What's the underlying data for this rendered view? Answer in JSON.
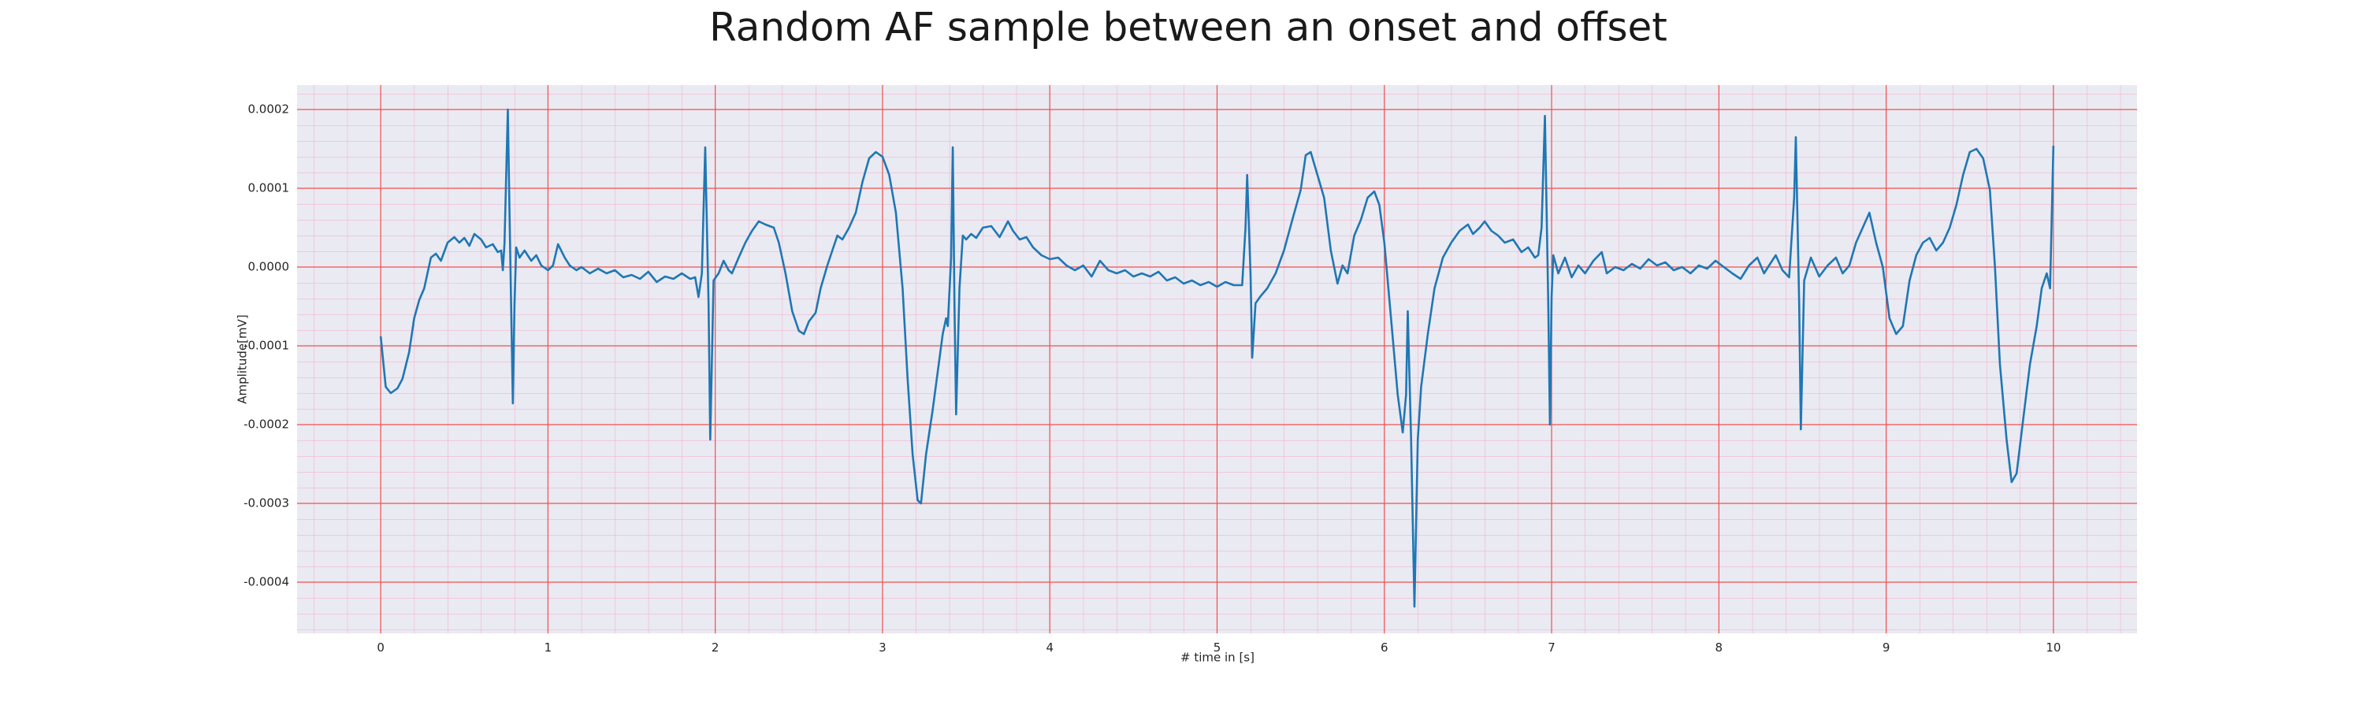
{
  "chart_data": {
    "type": "line",
    "title": "Random AF sample between an onset and offset",
    "xlabel": "# time in [s]",
    "ylabel": "Amplitude[mV]",
    "color": "#1f77b4",
    "grid": true,
    "minor_grid": true,
    "xlim": [
      -0.5,
      10.5
    ],
    "ylim": [
      -0.000465,
      0.000231
    ],
    "xticks": [
      0,
      1,
      2,
      3,
      4,
      5,
      6,
      7,
      8,
      9,
      10
    ],
    "yticks": [
      -0.0004,
      -0.0003,
      -0.0002,
      -0.0001,
      {
        "value": 0,
        "label": "0.0000"
      },
      0.0001,
      0.0002
    ],
    "x": [
      0,
      0.03,
      0.06,
      0.1,
      0.13,
      0.17,
      0.2,
      0.23,
      0.26,
      0.3,
      0.33,
      0.36,
      0.4,
      0.44,
      0.47,
      0.5,
      0.53,
      0.56,
      0.6,
      0.63,
      0.67,
      0.7,
      0.72,
      0.73,
      0.74,
      0.76,
      0.77,
      0.79,
      0.8,
      0.81,
      0.83,
      0.86,
      0.9,
      0.93,
      0.96,
      1.0,
      1.03,
      1.06,
      1.1,
      1.13,
      1.17,
      1.2,
      1.25,
      1.3,
      1.35,
      1.4,
      1.45,
      1.5,
      1.55,
      1.6,
      1.65,
      1.7,
      1.75,
      1.8,
      1.85,
      1.88,
      1.9,
      1.92,
      1.94,
      1.96,
      1.97,
      1.99,
      2.02,
      2.05,
      2.08,
      2.1,
      2.14,
      2.18,
      2.22,
      2.26,
      2.3,
      2.35,
      2.38,
      2.42,
      2.46,
      2.5,
      2.53,
      2.56,
      2.6,
      2.63,
      2.67,
      2.7,
      2.73,
      2.76,
      2.8,
      2.84,
      2.88,
      2.92,
      2.96,
      3.0,
      3.04,
      3.08,
      3.12,
      3.15,
      3.18,
      3.21,
      3.23,
      3.26,
      3.3,
      3.33,
      3.36,
      3.38,
      3.39,
      3.41,
      3.42,
      3.43,
      3.44,
      3.46,
      3.48,
      3.5,
      3.53,
      3.56,
      3.6,
      3.65,
      3.7,
      3.75,
      3.78,
      3.82,
      3.86,
      3.9,
      3.95,
      4.0,
      4.05,
      4.1,
      4.15,
      4.2,
      4.25,
      4.3,
      4.35,
      4.4,
      4.45,
      4.5,
      4.55,
      4.6,
      4.65,
      4.7,
      4.75,
      4.8,
      4.85,
      4.9,
      4.95,
      5.0,
      5.05,
      5.1,
      5.15,
      5.17,
      5.18,
      5.2,
      5.21,
      5.23,
      5.26,
      5.3,
      5.35,
      5.4,
      5.45,
      5.5,
      5.53,
      5.56,
      5.6,
      5.64,
      5.68,
      5.72,
      5.75,
      5.78,
      5.82,
      5.86,
      5.9,
      5.94,
      5.97,
      6.0,
      6.04,
      6.08,
      6.11,
      6.13,
      6.14,
      6.16,
      6.18,
      6.2,
      6.22,
      6.26,
      6.3,
      6.35,
      6.4,
      6.45,
      6.5,
      6.53,
      6.57,
      6.6,
      6.64,
      6.68,
      6.72,
      6.77,
      6.82,
      6.86,
      6.9,
      6.92,
      6.94,
      6.96,
      6.98,
      6.99,
      7.0,
      7.01,
      7.04,
      7.08,
      7.12,
      7.16,
      7.2,
      7.25,
      7.3,
      7.33,
      7.38,
      7.43,
      7.48,
      7.53,
      7.58,
      7.63,
      7.68,
      7.73,
      7.78,
      7.83,
      7.88,
      7.93,
      7.98,
      8.03,
      8.08,
      8.13,
      8.18,
      8.23,
      8.27,
      8.3,
      8.34,
      8.38,
      8.42,
      8.45,
      8.46,
      8.48,
      8.49,
      8.51,
      8.55,
      8.6,
      8.65,
      8.7,
      8.74,
      8.78,
      8.82,
      8.86,
      8.9,
      8.94,
      8.98,
      9.02,
      9.06,
      9.1,
      9.14,
      9.18,
      9.22,
      9.26,
      9.3,
      9.34,
      9.38,
      9.42,
      9.46,
      9.5,
      9.54,
      9.58,
      9.62,
      9.65,
      9.68,
      9.72,
      9.75,
      9.78,
      9.82,
      9.86,
      9.9,
      9.93,
      9.96,
      9.98,
      10.0
    ],
    "values": [
      -8.8e-05,
      -0.000152,
      -0.00016,
      -0.000154,
      -0.000142,
      -0.000108,
      -6.5e-05,
      -4.2e-05,
      -2.7e-05,
      1.2e-05,
      1.7e-05,
      8e-06,
      3.1e-05,
      3.8e-05,
      3.1e-05,
      3.7e-05,
      2.7e-05,
      4.2e-05,
      3.5e-05,
      2.5e-05,
      2.9e-05,
      1.9e-05,
      2.1e-05,
      -4e-06,
      3e-05,
      0.0002,
      6.9e-05,
      -0.000173,
      -4.6e-05,
      2.5e-05,
      1.2e-05,
      2.1e-05,
      8e-06,
      1.5e-05,
      2e-06,
      -4e-06,
      2e-06,
      2.9e-05,
      1.2e-05,
      2e-06,
      -4e-06,
      0,
      -8e-06,
      -2e-06,
      -8e-06,
      -4e-06,
      -1.3e-05,
      -1e-05,
      -1.5e-05,
      -6e-06,
      -1.9e-05,
      -1.2e-05,
      -1.5e-05,
      -8e-06,
      -1.5e-05,
      -1.3e-05,
      -3.8e-05,
      -8e-06,
      0.000152,
      -4.6e-05,
      -0.000219,
      -1.7e-05,
      -8e-06,
      8e-06,
      -4e-06,
      -8e-06,
      1.2e-05,
      3.1e-05,
      4.6e-05,
      5.8e-05,
      5.4e-05,
      5e-05,
      3.1e-05,
      -8e-06,
      -5.6e-05,
      -8.1e-05,
      -8.5e-05,
      -6.9e-05,
      -5.8e-05,
      -2.7e-05,
      2e-06,
      2.1e-05,
      4e-05,
      3.5e-05,
      5e-05,
      6.9e-05,
      0.000108,
      0.000138,
      0.000146,
      0.00014,
      0.000117,
      6.9e-05,
      -2.7e-05,
      -0.000142,
      -0.000238,
      -0.000296,
      -0.0003,
      -0.000238,
      -0.000181,
      -0.000133,
      -8.5e-05,
      -6.5e-05,
      -7.5e-05,
      1.2e-05,
      0.000152,
      -4.6e-05,
      -0.000187,
      -2.7e-05,
      4e-05,
      3.5e-05,
      4.2e-05,
      3.7e-05,
      5e-05,
      5.2e-05,
      3.8e-05,
      5.8e-05,
      4.6e-05,
      3.5e-05,
      3.8e-05,
      2.5e-05,
      1.5e-05,
      1e-05,
      1.2e-05,
      2e-06,
      -4e-06,
      2e-06,
      -1.2e-05,
      8e-06,
      -4e-06,
      -8e-06,
      -4e-06,
      -1.2e-05,
      -8e-06,
      -1.2e-05,
      -6e-06,
      -1.7e-05,
      -1.3e-05,
      -2.1e-05,
      -1.7e-05,
      -2.3e-05,
      -1.9e-05,
      -2.5e-05,
      -1.9e-05,
      -2.3e-05,
      -2.3e-05,
      5e-05,
      0.000117,
      -8e-06,
      -0.000115,
      -4.6e-05,
      -3.7e-05,
      -2.7e-05,
      -8e-06,
      2.1e-05,
      6e-05,
      9.8e-05,
      0.000142,
      0.000146,
      0.000117,
      8.8e-05,
      2.1e-05,
      -2.1e-05,
      2e-06,
      -8e-06,
      4e-05,
      6e-05,
      8.8e-05,
      9.6e-05,
      7.9e-05,
      3.1e-05,
      -6.5e-05,
      -0.000162,
      -0.00021,
      -0.000162,
      -5.6e-05,
      -0.000219,
      -0.000431,
      -0.000219,
      -0.000152,
      -8.5e-05,
      -2.7e-05,
      1.2e-05,
      3.1e-05,
      4.6e-05,
      5.4e-05,
      4.2e-05,
      5e-05,
      5.8e-05,
      4.6e-05,
      4e-05,
      3.1e-05,
      3.5e-05,
      1.9e-05,
      2.5e-05,
      1.2e-05,
      1.5e-05,
      5e-05,
      0.000192,
      -4.6e-05,
      -0.0002,
      -3.7e-05,
      1.5e-05,
      -8e-06,
      1.2e-05,
      -1.3e-05,
      2e-06,
      -8e-06,
      8e-06,
      1.9e-05,
      -8e-06,
      0,
      -4e-06,
      4e-06,
      -2e-06,
      1e-05,
      2e-06,
      6e-06,
      -4e-06,
      0,
      -8e-06,
      2e-06,
      -2e-06,
      8e-06,
      0,
      -8e-06,
      -1.5e-05,
      2e-06,
      1.2e-05,
      -8e-06,
      2e-06,
      1.5e-05,
      -4e-06,
      -1.3e-05,
      8.8e-05,
      0.000165,
      -4.6e-05,
      -0.000206,
      -1.7e-05,
      1.2e-05,
      -1.2e-05,
      2e-06,
      1.2e-05,
      -8e-06,
      2e-06,
      3.1e-05,
      5e-05,
      6.9e-05,
      3.1e-05,
      0,
      -6.5e-05,
      -8.5e-05,
      -7.5e-05,
      -1.7e-05,
      1.5e-05,
      3.1e-05,
      3.7e-05,
      2.1e-05,
      3.1e-05,
      5e-05,
      7.9e-05,
      0.000117,
      0.000146,
      0.00015,
      0.000138,
      9.8e-05,
      2e-06,
      -0.000123,
      -0.000219,
      -0.000273,
      -0.000262,
      -0.000192,
      -0.000123,
      -7.5e-05,
      -2.7e-05,
      -8e-06,
      -2.7e-05,
      0.000154
    ]
  }
}
